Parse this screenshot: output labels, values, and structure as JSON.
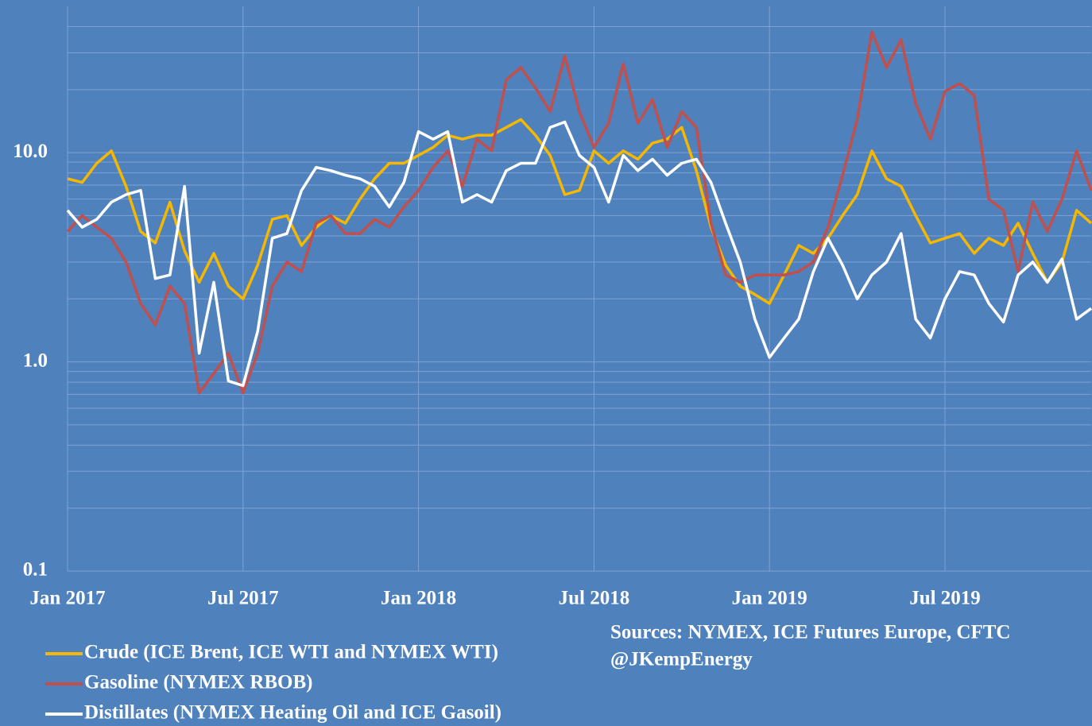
{
  "chart_data": {
    "type": "line",
    "log_scale": true,
    "grid": true,
    "legend": "bottom-left",
    "annotations": [
      "Sources: NYMEX, ICE Futures Europe,  CFTC",
      "@JKempEnergy"
    ],
    "x": [
      0,
      0.5,
      1,
      1.5,
      2,
      2.5,
      3,
      3.5,
      4,
      4.5,
      5,
      5.5,
      6,
      6.5,
      7,
      7.5,
      8,
      8.5,
      9,
      9.5,
      10,
      10.5,
      11,
      11.5,
      12,
      12.5,
      13,
      13.5,
      14,
      14.5,
      15,
      15.5,
      16,
      16.5,
      17,
      17.5,
      18,
      18.5,
      19,
      19.5,
      20,
      20.5,
      21,
      21.5,
      22,
      22.5,
      23,
      23.5,
      24,
      24.5,
      25,
      25.5,
      26,
      26.5,
      27,
      27.5,
      28,
      28.5,
      29,
      29.5,
      30,
      30.5,
      31,
      31.5,
      32,
      32.5,
      33,
      33.5,
      34,
      34.5,
      35
    ],
    "xlim": [
      0,
      35
    ],
    "xticks": [
      {
        "value": 0,
        "label": "Jan 2017"
      },
      {
        "value": 6,
        "label": "Jul 2017"
      },
      {
        "value": 12,
        "label": "Jan 2018"
      },
      {
        "value": 18,
        "label": "Jul 2018"
      },
      {
        "value": 24,
        "label": "Jan 2019"
      },
      {
        "value": 30,
        "label": "Jul 2019"
      }
    ],
    "ylim": [
      0.1,
      50
    ],
    "yticks": [
      0.1,
      {
        "value": 1,
        "label": "1.0"
      },
      {
        "value": 10,
        "label": "10.0"
      }
    ],
    "minor_yticks": [
      0.2,
      0.3,
      0.4,
      0.5,
      0.6,
      0.7,
      0.8,
      0.9,
      2,
      3,
      4,
      5,
      6,
      7,
      8,
      9,
      20,
      30,
      40
    ],
    "series": [
      {
        "name": "Crude (ICE Brent, ICE WTI and NYMEX WTI)",
        "color": "#f5b700",
        "values": [
          7.5,
          7.2,
          8.9,
          10.2,
          6.9,
          4.2,
          3.7,
          5.8,
          3.4,
          2.4,
          3.3,
          2.3,
          2.0,
          2.9,
          4.8,
          5.0,
          3.6,
          4.4,
          5.0,
          4.6,
          6.0,
          7.5,
          8.9,
          8.9,
          9.7,
          10.6,
          12.1,
          11.6,
          12.1,
          12.1,
          13.2,
          14.4,
          12.1,
          9.7,
          6.3,
          6.6,
          10.2,
          8.9,
          10.2,
          9.3,
          11.1,
          11.6,
          13.2,
          8.2,
          4.4,
          2.9,
          2.3,
          2.1,
          1.9,
          2.6,
          3.6,
          3.3,
          3.9,
          5.0,
          6.3,
          10.2,
          7.5,
          6.9,
          5.0,
          3.7,
          3.9,
          4.1,
          3.3,
          3.9,
          3.6,
          4.6,
          3.3,
          2.4,
          3.0,
          5.3,
          4.6
        ]
      },
      {
        "name": "Gasoline (NYMEX RBOB)",
        "color": "#c0504d",
        "values": [
          4.2,
          5.0,
          4.4,
          3.9,
          3.0,
          1.9,
          1.5,
          2.3,
          1.9,
          0.71,
          0.88,
          1.1,
          0.71,
          1.1,
          2.3,
          3.0,
          2.7,
          4.6,
          5.0,
          4.1,
          4.1,
          4.8,
          4.4,
          5.5,
          6.6,
          8.5,
          10.2,
          6.9,
          11.6,
          10.2,
          22.3,
          25.5,
          20.4,
          15.7,
          29.0,
          15.7,
          10.6,
          13.8,
          26.6,
          13.8,
          17.9,
          10.6,
          15.7,
          13.2,
          4.6,
          2.6,
          2.4,
          2.6,
          2.6,
          2.6,
          2.7,
          3.0,
          4.4,
          7.8,
          14.4,
          37.8,
          25.5,
          34.6,
          17.2,
          11.6,
          19.6,
          21.4,
          18.8,
          6.0,
          5.3,
          2.7,
          5.8,
          4.2,
          6.0,
          10.2,
          6.6
        ]
      },
      {
        "name": "Distillates (NYMEX Heating Oil and ICE Gasoil)",
        "color": "#ffffff",
        "values": [
          5.3,
          4.4,
          4.8,
          5.8,
          6.3,
          6.6,
          2.5,
          2.6,
          6.9,
          1.1,
          2.4,
          0.81,
          0.77,
          1.4,
          3.9,
          4.1,
          6.6,
          8.5,
          8.2,
          7.8,
          7.5,
          6.9,
          5.5,
          7.2,
          12.6,
          11.6,
          12.6,
          5.8,
          6.3,
          5.8,
          8.2,
          8.9,
          8.9,
          13.2,
          14.0,
          9.7,
          8.5,
          5.8,
          9.7,
          8.2,
          9.3,
          7.8,
          8.9,
          9.3,
          7.2,
          4.6,
          3.0,
          1.6,
          1.05,
          1.3,
          1.6,
          2.7,
          3.9,
          2.9,
          2.0,
          2.6,
          3.0,
          4.1,
          1.6,
          1.3,
          2.0,
          2.7,
          2.6,
          1.9,
          1.55,
          2.6,
          3.0,
          2.4,
          3.1,
          1.6,
          1.8
        ]
      }
    ]
  }
}
